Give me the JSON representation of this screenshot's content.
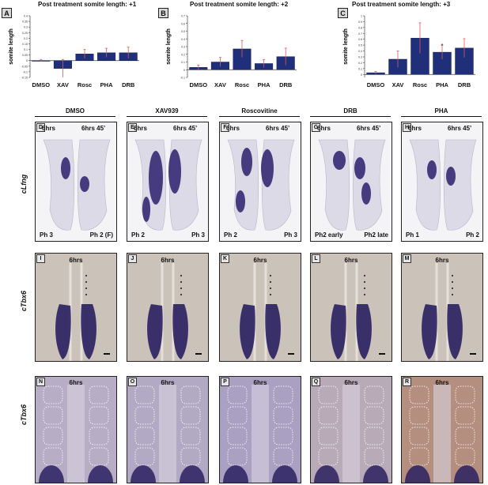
{
  "charts": {
    "A": {
      "label": "A",
      "title": "Post treatment somite length: +1"
    },
    "B": {
      "label": "B",
      "title": "Post treatment somite length: +2"
    },
    "C": {
      "label": "C",
      "title": "Post treatment somite length: +3"
    }
  },
  "chart_data": [
    {
      "type": "bar",
      "title": "Post treatment somite length: +1",
      "ylabel": "somite length",
      "categories": [
        "DMSO",
        "XAV",
        "Rosc",
        "PHA",
        "DRB"
      ],
      "values": [
        0.0,
        -0.07,
        0.06,
        0.07,
        0.07
      ],
      "errors": [
        0.01,
        0.08,
        0.04,
        0.04,
        0.05
      ],
      "yticks": [
        "-0.15",
        "-0.1",
        "-0.05",
        "0",
        "0.05",
        "0.1",
        "0.15",
        "0.2",
        "0.25",
        "0.3",
        "0.35",
        "0.4"
      ],
      "ylim": [
        -0.15,
        0.4
      ],
      "significance": [
        "",
        "",
        "",
        "",
        ""
      ]
    },
    {
      "type": "bar",
      "title": "Post treatment somite length: +2",
      "ylabel": "somite length",
      "categories": [
        "DMSO",
        "XAV",
        "Rosc",
        "PHA",
        "DRB"
      ],
      "values": [
        0.03,
        0.1,
        0.27,
        0.08,
        0.17
      ],
      "errors": [
        0.03,
        0.06,
        0.11,
        0.05,
        0.11
      ],
      "yticks": [
        "-0.1",
        "0",
        "0.1",
        "0.2",
        "0.3",
        "0.4",
        "0.5",
        "0.6",
        "0.7"
      ],
      "ylim": [
        -0.1,
        0.7
      ],
      "significance": [
        "",
        "",
        "",
        "",
        ""
      ]
    },
    {
      "type": "bar",
      "title": "Post treatment somite length: +3",
      "ylabel": "somite length",
      "categories": [
        "DMSO",
        "XAV",
        "Rosc",
        "PHA",
        "DRB"
      ],
      "values": [
        0.03,
        0.26,
        0.62,
        0.38,
        0.45
      ],
      "errors": [
        0.02,
        0.14,
        0.26,
        0.12,
        0.16
      ],
      "yticks": [
        "0",
        "0.1",
        "0.2",
        "0.3",
        "0.4",
        "0.5",
        "0.6",
        "0.7",
        "0.8",
        "0.9",
        "1"
      ],
      "ylim": [
        -0.05,
        1.0
      ],
      "significance": [
        "",
        "",
        "",
        "*",
        ""
      ]
    }
  ],
  "colors": {
    "bar": "#1f2f7a",
    "error": "#e05a5a",
    "stain_dark": "#2b1f6b",
    "tissue": "#e8e6ee"
  },
  "columns": [
    "DMSO",
    "XAV939",
    "Roscovitine",
    "DRB",
    "PHA"
  ],
  "rows": [
    "cLfng",
    "cTbx6",
    "cTbx6"
  ],
  "row1": [
    {
      "label": "D",
      "t1": "6hrs",
      "t2": "6hrs 45’",
      "p1": "Ph 3",
      "p2": "Ph 2 (F)"
    },
    {
      "label": "E",
      "t1": "6hrs",
      "t2": "6hrs 45’",
      "p1": "Ph 2",
      "p2": "Ph 3"
    },
    {
      "label": "F",
      "t1": "6hrs",
      "t2": "6hrs 45’",
      "p1": "Ph 2",
      "p2": "Ph 3"
    },
    {
      "label": "G",
      "t1": "6hrs",
      "t2": "6hrs 45’",
      "p1": "Ph2 early",
      "p2": "Ph2 late"
    },
    {
      "label": "H",
      "t1": "6hrs",
      "t2": "6hrs 45’",
      "p1": "Ph 1",
      "p2": "Ph 2"
    }
  ],
  "row2": [
    {
      "label": "I",
      "t": "6hrs"
    },
    {
      "label": "J",
      "t": "6hrs"
    },
    {
      "label": "K",
      "t": "6hrs"
    },
    {
      "label": "L",
      "t": "6hrs"
    },
    {
      "label": "M",
      "t": "6hrs"
    }
  ],
  "row3": [
    {
      "label": "N",
      "t": "6hrs"
    },
    {
      "label": "O",
      "t": "6hrs"
    },
    {
      "label": "P",
      "t": "6hrs"
    },
    {
      "label": "Q",
      "t": "6hrs"
    },
    {
      "label": "R",
      "t": "6hrs"
    }
  ]
}
